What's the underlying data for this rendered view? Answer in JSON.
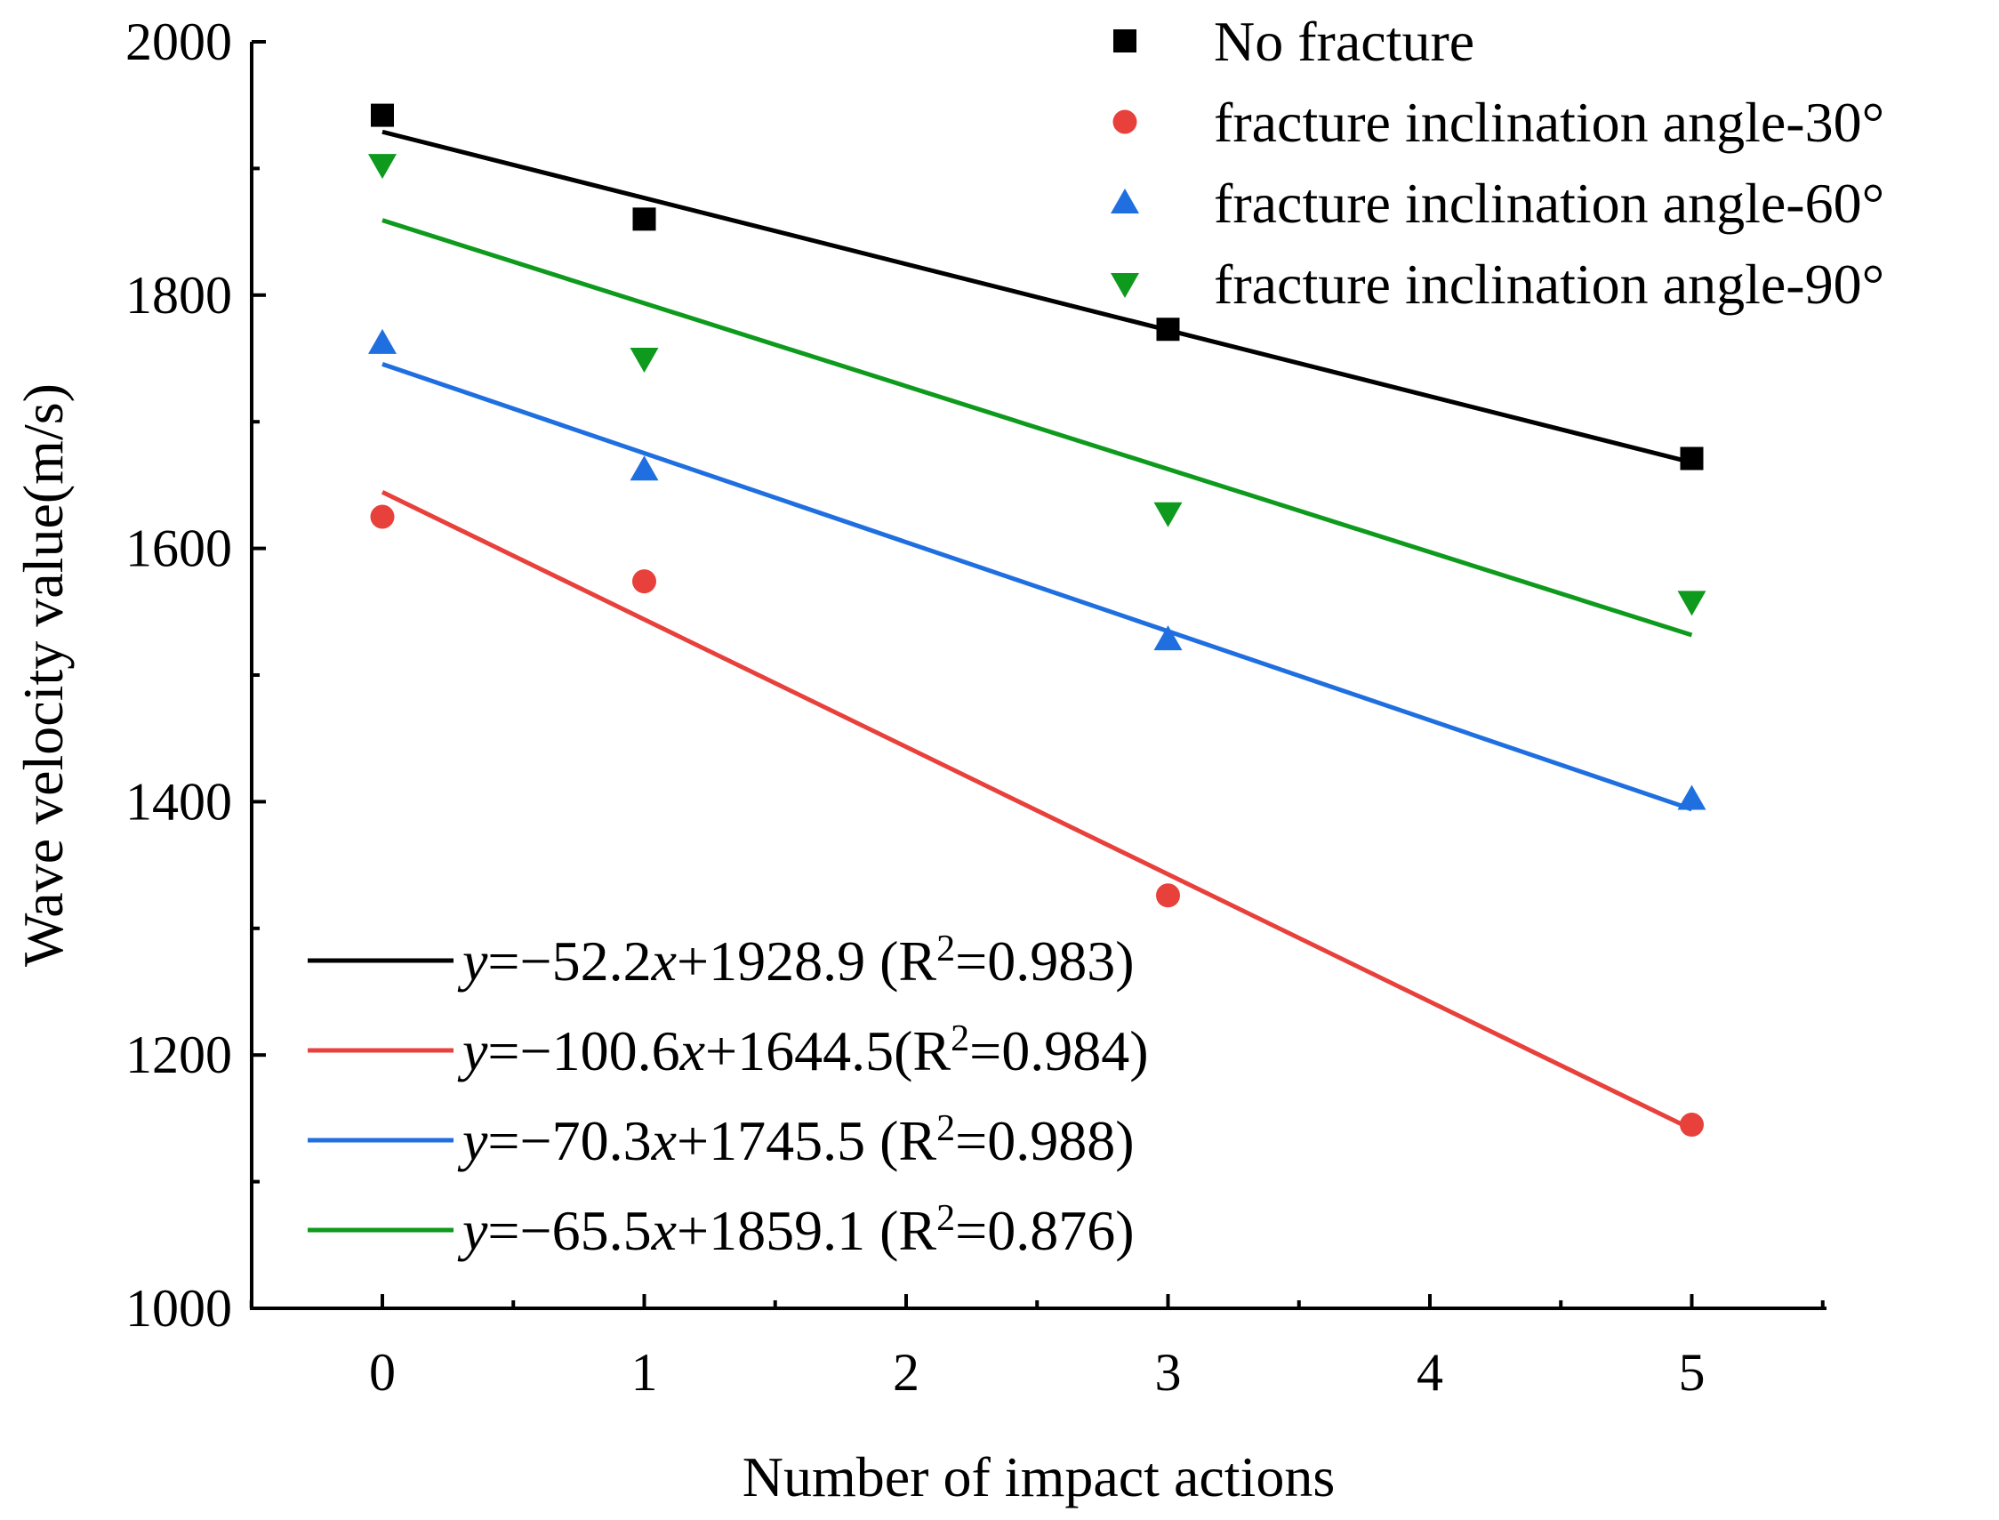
{
  "chart_data": {
    "type": "scatter",
    "xlabel": "Number of impact actions",
    "ylabel": "Wave velocity value(m/s)",
    "xlim": [
      -0.5,
      5.5
    ],
    "ylim": [
      1000,
      2000
    ],
    "x_ticks": [
      0,
      1,
      2,
      3,
      4,
      5
    ],
    "y_ticks": [
      1000,
      1200,
      1400,
      1600,
      1800,
      2000
    ],
    "grid": false,
    "legend_position": "top-right",
    "fit_legend_position": "bottom-left",
    "series": [
      {
        "name": "No fracture",
        "marker": "square",
        "color": "#000000",
        "x": [
          0,
          1,
          3,
          5
        ],
        "y": [
          1942,
          1860,
          1773,
          1671
        ],
        "fit": {
          "slope": -52.2,
          "intercept": 1928.9,
          "r2": "0.983",
          "equation": "y=−52.2x+1928.9 (R2=0.983)"
        }
      },
      {
        "name": "fracture inclination angle-30°",
        "marker": "circle",
        "color": "#e8413c",
        "x": [
          0,
          1,
          3,
          5
        ],
        "y": [
          1625,
          1574,
          1326,
          1145
        ],
        "fit": {
          "slope": -100.6,
          "intercept": 1644.5,
          "r2": "0.984",
          "equation": "y=−100.6x+1644.5(R2=0.984)"
        }
      },
      {
        "name": "fracture inclination angle-60°",
        "marker": "triangle-up",
        "color": "#1f6fe0",
        "x": [
          0,
          1,
          3,
          5
        ],
        "y": [
          1762,
          1662,
          1528,
          1402
        ],
        "fit": {
          "slope": -70.3,
          "intercept": 1745.5,
          "r2": "0.988",
          "equation": "y=−70.3x+1745.5 (R2=0.988)"
        }
      },
      {
        "name": "fracture inclination angle-90°",
        "marker": "triangle-down",
        "color": "#0e9a1c",
        "x": [
          0,
          1,
          3,
          5
        ],
        "y": [
          1903,
          1750,
          1628,
          1558
        ],
        "fit": {
          "slope": -65.5,
          "intercept": 1859.1,
          "r2": "0.876",
          "equation": "y=−65.5x+1859.1 (R2=0.876)"
        }
      }
    ]
  }
}
